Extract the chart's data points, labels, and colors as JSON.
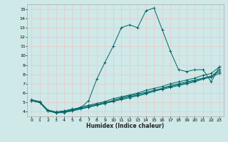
{
  "xlabel": "Humidex (Indice chaleur)",
  "bg_color": "#cfe8e8",
  "grid_color": "#e8c8c8",
  "line_color": "#006666",
  "xlim": [
    -0.5,
    23.5
  ],
  "ylim": [
    3.5,
    15.5
  ],
  "xticks": [
    0,
    1,
    2,
    3,
    4,
    5,
    6,
    7,
    8,
    9,
    10,
    11,
    12,
    13,
    14,
    15,
    16,
    17,
    18,
    19,
    20,
    21,
    22,
    23
  ],
  "yticks": [
    4,
    5,
    6,
    7,
    8,
    9,
    10,
    11,
    12,
    13,
    14,
    15
  ],
  "lines": [
    {
      "x": [
        0,
        1,
        2,
        3,
        4,
        5,
        6,
        7,
        8,
        9,
        10,
        11,
        12,
        13,
        14,
        15,
        16,
        17,
        18,
        19,
        20,
        21,
        22,
        23
      ],
      "y": [
        5.3,
        5.1,
        4.2,
        4.0,
        4.1,
        4.3,
        4.4,
        5.2,
        7.5,
        9.3,
        11.0,
        13.0,
        13.3,
        13.0,
        14.8,
        15.1,
        12.8,
        10.5,
        8.5,
        8.3,
        8.5,
        8.5,
        7.2,
        8.8
      ]
    },
    {
      "x": [
        0,
        1,
        2,
        3,
        4,
        5,
        6,
        7,
        8,
        9,
        10,
        11,
        12,
        13,
        14,
        15,
        16,
        17,
        18,
        19,
        20,
        21,
        22,
        23
      ],
      "y": [
        5.2,
        5.0,
        4.1,
        3.9,
        4.0,
        4.2,
        4.5,
        4.7,
        4.9,
        5.1,
        5.4,
        5.6,
        5.8,
        6.0,
        6.3,
        6.5,
        6.7,
        7.0,
        7.2,
        7.4,
        7.6,
        7.9,
        8.1,
        8.8
      ]
    },
    {
      "x": [
        0,
        1,
        2,
        3,
        4,
        5,
        6,
        7,
        8,
        9,
        10,
        11,
        12,
        13,
        14,
        15,
        16,
        17,
        18,
        19,
        20,
        21,
        22,
        23
      ],
      "y": [
        5.2,
        5.0,
        4.1,
        3.9,
        4.0,
        4.2,
        4.4,
        4.6,
        4.8,
        5.0,
        5.2,
        5.5,
        5.7,
        5.9,
        6.1,
        6.3,
        6.5,
        6.8,
        7.0,
        7.2,
        7.4,
        7.6,
        7.8,
        8.5
      ]
    },
    {
      "x": [
        0,
        1,
        2,
        3,
        4,
        5,
        6,
        7,
        8,
        9,
        10,
        11,
        12,
        13,
        14,
        15,
        16,
        17,
        18,
        19,
        20,
        21,
        22,
        23
      ],
      "y": [
        5.2,
        5.0,
        4.1,
        3.9,
        4.0,
        4.1,
        4.3,
        4.5,
        4.7,
        4.9,
        5.2,
        5.4,
        5.6,
        5.8,
        6.0,
        6.2,
        6.5,
        6.7,
        6.9,
        7.1,
        7.3,
        7.6,
        7.8,
        8.3
      ]
    },
    {
      "x": [
        0,
        1,
        2,
        3,
        4,
        5,
        6,
        7,
        8,
        9,
        10,
        11,
        12,
        13,
        14,
        15,
        16,
        17,
        18,
        19,
        20,
        21,
        22,
        23
      ],
      "y": [
        5.2,
        5.0,
        4.1,
        3.9,
        3.9,
        4.1,
        4.3,
        4.5,
        4.7,
        4.9,
        5.1,
        5.3,
        5.5,
        5.7,
        5.9,
        6.2,
        6.4,
        6.6,
        6.8,
        7.0,
        7.2,
        7.5,
        7.7,
        8.1
      ]
    }
  ]
}
